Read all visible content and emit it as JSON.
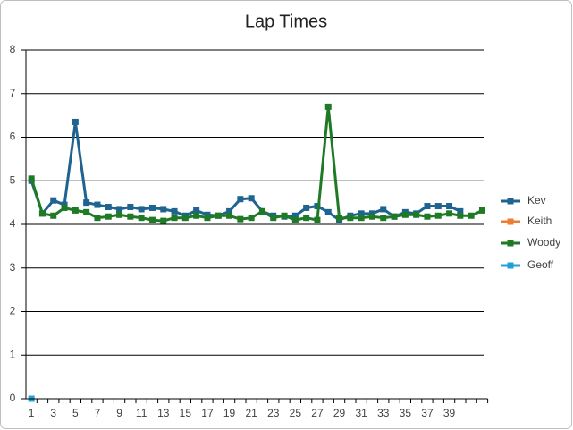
{
  "chart_data": {
    "type": "line",
    "title": "Lap Times",
    "categories": [
      1,
      null,
      3,
      null,
      5,
      null,
      7,
      null,
      9,
      null,
      11,
      null,
      13,
      null,
      15,
      null,
      17,
      null,
      19,
      null,
      21,
      null,
      23,
      null,
      25,
      null,
      27,
      null,
      29,
      null,
      31,
      null,
      33,
      null,
      35,
      null,
      37,
      null,
      39,
      null,
      null,
      null
    ],
    "series": [
      {
        "name": "Kev",
        "color": "#1f6391",
        "values": [
          5.0,
          4.25,
          4.55,
          4.45,
          6.35,
          4.5,
          4.45,
          4.4,
          4.35,
          4.4,
          4.35,
          4.38,
          4.35,
          4.3,
          4.2,
          4.32,
          4.22,
          4.2,
          4.3,
          4.58,
          4.6,
          4.3,
          4.2,
          4.18,
          4.2,
          4.38,
          4.42,
          4.28,
          4.1,
          4.2,
          4.25,
          4.25,
          4.35,
          4.18,
          4.28,
          4.25,
          4.42,
          4.42,
          4.42,
          4.3,
          null,
          null
        ]
      },
      {
        "name": "Keith",
        "color": "#ed7d31",
        "values": [
          null,
          null,
          null,
          null,
          null,
          null,
          null,
          null,
          null,
          null,
          null,
          null,
          null,
          null,
          null,
          null,
          null,
          null,
          null,
          null,
          null,
          null,
          null,
          null,
          null,
          null,
          null,
          null,
          null,
          null,
          null,
          null,
          null,
          null,
          null,
          null,
          null,
          null,
          null,
          null,
          null,
          null
        ]
      },
      {
        "name": "Woody",
        "color": "#1e7a24",
        "values": [
          5.05,
          4.25,
          4.2,
          4.38,
          4.32,
          4.28,
          4.15,
          4.18,
          4.22,
          4.18,
          4.15,
          4.1,
          4.08,
          4.15,
          4.15,
          4.2,
          4.15,
          4.2,
          4.2,
          4.12,
          4.15,
          4.3,
          4.15,
          4.2,
          4.1,
          4.15,
          4.1,
          6.7,
          4.15,
          4.15,
          4.15,
          4.18,
          4.15,
          4.18,
          4.22,
          4.22,
          4.18,
          4.2,
          4.25,
          4.2,
          4.2,
          4.32
        ]
      },
      {
        "name": "Geoff",
        "color": "#1fa0d8",
        "values": [
          0,
          null,
          null,
          null,
          null,
          null,
          null,
          null,
          null,
          null,
          null,
          null,
          null,
          null,
          null,
          null,
          null,
          null,
          null,
          null,
          null,
          null,
          null,
          null,
          null,
          null,
          null,
          null,
          null,
          null,
          null,
          null,
          null,
          null,
          null,
          null,
          null,
          null,
          null,
          null,
          null,
          null
        ]
      }
    ],
    "ylim": [
      0,
      8
    ],
    "yticks": [
      0,
      1,
      2,
      3,
      4,
      5,
      6,
      7,
      8
    ],
    "grid": true,
    "legend": "right"
  }
}
